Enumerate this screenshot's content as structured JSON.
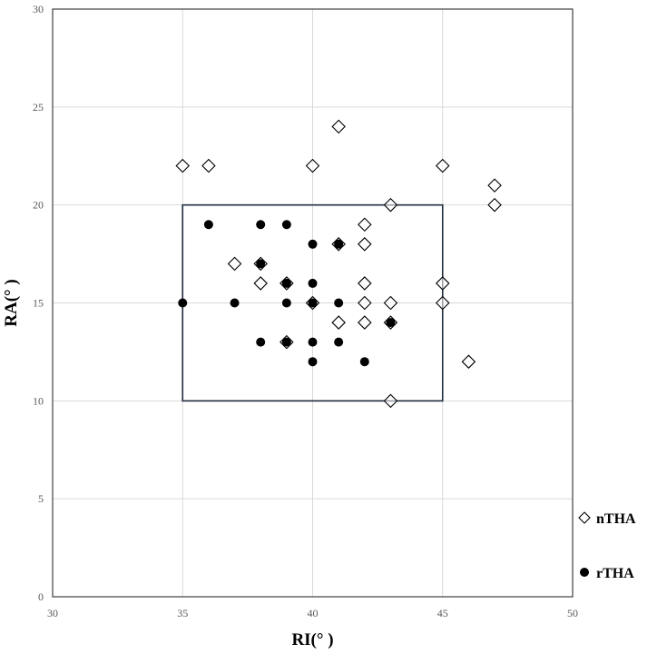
{
  "chart_data": {
    "type": "scatter",
    "xlabel": "RI(° )",
    "ylabel": "RA(° )",
    "xlim": [
      30,
      50
    ],
    "ylim": [
      0,
      30
    ],
    "x_ticks": [
      30,
      35,
      40,
      45,
      50
    ],
    "y_ticks": [
      0,
      5,
      10,
      15,
      20,
      25,
      30
    ],
    "grid": true,
    "legend_position": "bottom-right",
    "safe_zone": {
      "x_range": [
        35,
        45
      ],
      "y_range": [
        10,
        20
      ]
    },
    "series": [
      {
        "name": "nTHA",
        "marker": "open-diamond",
        "color": "#000000",
        "points": [
          [
            35,
            22
          ],
          [
            36,
            22
          ],
          [
            40,
            22
          ],
          [
            41,
            24
          ],
          [
            45,
            22
          ],
          [
            47,
            21
          ],
          [
            47,
            20
          ],
          [
            43,
            20
          ],
          [
            42,
            19
          ],
          [
            41,
            18
          ],
          [
            42,
            18
          ],
          [
            37,
            17
          ],
          [
            38,
            17
          ],
          [
            38,
            16
          ],
          [
            39,
            16
          ],
          [
            42,
            16
          ],
          [
            45,
            16
          ],
          [
            40,
            15
          ],
          [
            42,
            15
          ],
          [
            43,
            15
          ],
          [
            45,
            15
          ],
          [
            41,
            14
          ],
          [
            42,
            14
          ],
          [
            43,
            14
          ],
          [
            39,
            13
          ],
          [
            46,
            12
          ],
          [
            43,
            10
          ]
        ]
      },
      {
        "name": "rTHA",
        "marker": "filled-circle",
        "color": "#000000",
        "points": [
          [
            36,
            19
          ],
          [
            38,
            19
          ],
          [
            39,
            19
          ],
          [
            40,
            18
          ],
          [
            41,
            18
          ],
          [
            38,
            17
          ],
          [
            39,
            16
          ],
          [
            40,
            16
          ],
          [
            35,
            15
          ],
          [
            37,
            15
          ],
          [
            39,
            15
          ],
          [
            40,
            15
          ],
          [
            41,
            15
          ],
          [
            43,
            14
          ],
          [
            38,
            13
          ],
          [
            39,
            13
          ],
          [
            40,
            13
          ],
          [
            41,
            13
          ],
          [
            40,
            12
          ],
          [
            42,
            12
          ]
        ]
      }
    ]
  }
}
